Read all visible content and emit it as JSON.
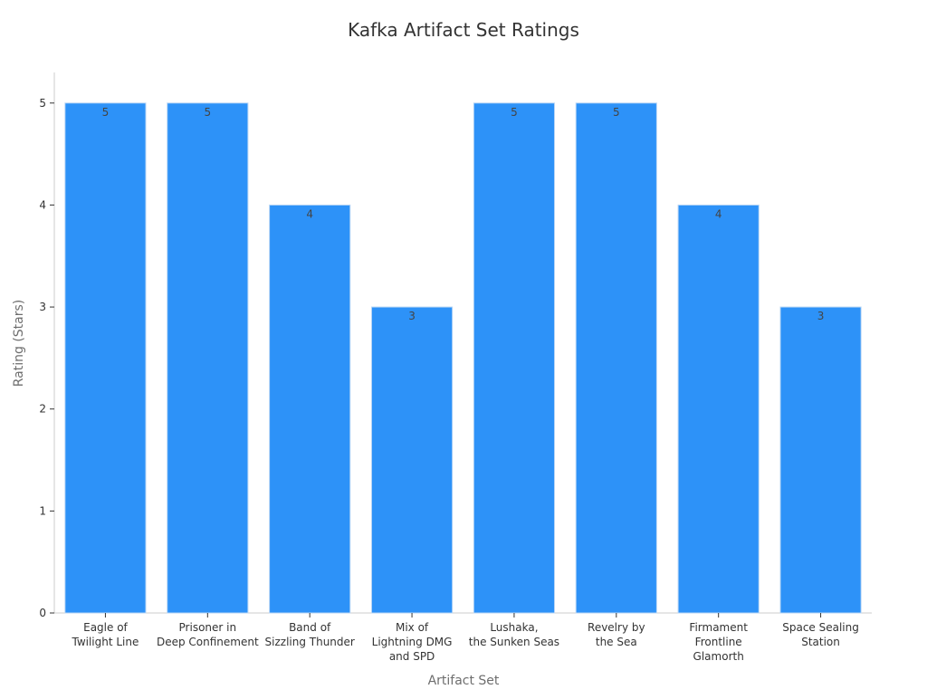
{
  "chart_data": {
    "type": "bar",
    "title": "Kafka Artifact Set Ratings",
    "xlabel": "Artifact Set",
    "ylabel": "Rating (Stars)",
    "categories": [
      [
        "Eagle of",
        "Twilight Line"
      ],
      [
        "Prisoner in",
        "Deep Confinement"
      ],
      [
        "Band of",
        "Sizzling Thunder"
      ],
      [
        "Mix of",
        "Lightning DMG",
        "and SPD"
      ],
      [
        "Lushaka,",
        "the Sunken Seas"
      ],
      [
        "Revelry by",
        "the Sea"
      ],
      [
        "Firmament",
        "Frontline",
        "Glamorth"
      ],
      [
        "Space Sealing",
        "Station"
      ]
    ],
    "values": [
      5,
      5,
      4,
      3,
      5,
      5,
      4,
      3
    ],
    "data_labels": [
      "5",
      "5",
      "4",
      "3",
      "5",
      "5",
      "4",
      "3"
    ],
    "ylim": [
      0,
      5.3
    ],
    "yticks": [
      0,
      1,
      2,
      3,
      4,
      5
    ],
    "grid": false,
    "legend": "none",
    "colors": {
      "bar": "#2d92f8",
      "bar_edge": "#b9d6f5",
      "axis": "#cccccc",
      "text": "#333333"
    }
  }
}
